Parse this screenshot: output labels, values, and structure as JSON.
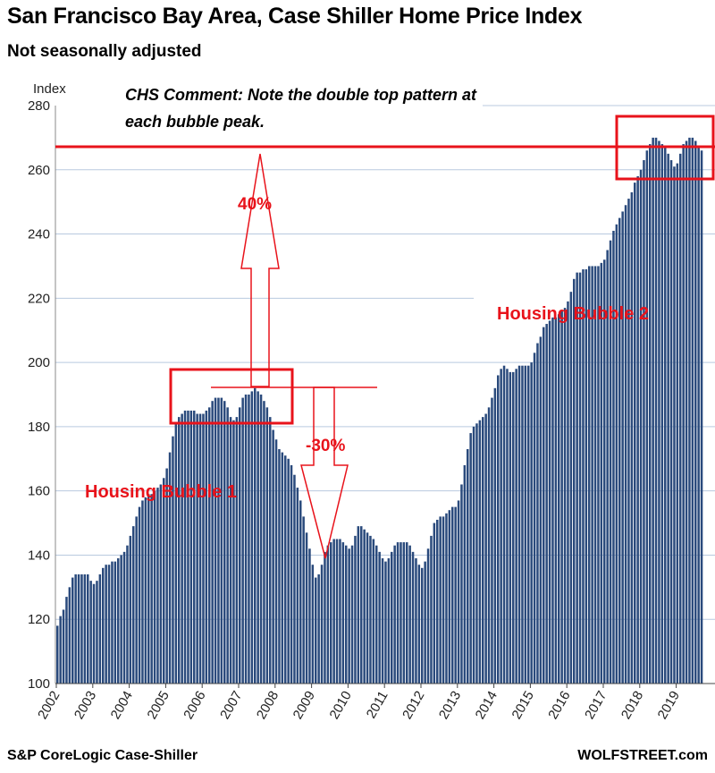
{
  "header": {
    "title": "San Francisco Bay Area, Case Shiller Home Price Index",
    "subtitle": "Not seasonally adjusted"
  },
  "footer": {
    "source": "S&P CoreLogic Case-Shiller",
    "brand": "WOLFSTREET.com"
  },
  "colors": {
    "bar": "#2a4a7c",
    "annotation": "#e8131b",
    "grid": "#b9c9df"
  },
  "annotations": {
    "comment_line1": "CHS Comment: Note the double top pattern at",
    "comment_line2": "each bubble peak.",
    "pct_up": "40%",
    "pct_down": "-30%",
    "bubble1": "Housing Bubble 1",
    "bubble2": "Housing Bubble 2"
  },
  "chart_data": {
    "type": "bar",
    "title": "San Francisco Bay Area, Case Shiller Home Price Index",
    "subtitle": "Not seasonally adjusted",
    "ylabel": "Index",
    "ylim": [
      100,
      280
    ],
    "yticks": [
      100,
      120,
      140,
      160,
      180,
      200,
      220,
      240,
      260,
      280
    ],
    "xticks": [
      "2002",
      "2003",
      "2004",
      "2005",
      "2006",
      "2007",
      "2008",
      "2009",
      "2010",
      "2011",
      "2012",
      "2013",
      "2014",
      "2015",
      "2016",
      "2017",
      "2018",
      "2019"
    ],
    "grid": "horizontal",
    "frequency": "monthly, Jan 2002 - Sep 2019",
    "values": [
      118,
      121,
      123,
      127,
      130,
      133,
      134,
      134,
      134,
      134,
      134,
      132,
      131,
      132,
      134,
      136,
      137,
      137,
      138,
      138,
      139,
      140,
      141,
      143,
      146,
      149,
      152,
      155,
      157,
      158,
      159,
      159,
      160,
      161,
      162,
      164,
      167,
      172,
      177,
      181,
      183,
      184,
      185,
      185,
      185,
      185,
      184,
      184,
      184,
      185,
      186,
      188,
      189,
      189,
      189,
      188,
      186,
      183,
      182,
      183,
      186,
      189,
      190,
      190,
      191,
      192,
      191,
      190,
      188,
      186,
      183,
      179,
      176,
      173,
      172,
      171,
      170,
      168,
      165,
      161,
      157,
      152,
      147,
      142,
      137,
      133,
      134,
      137,
      141,
      143,
      144,
      145,
      145,
      145,
      144,
      143,
      142,
      143,
      146,
      149,
      149,
      148,
      147,
      146,
      145,
      143,
      141,
      139,
      138,
      139,
      141,
      143,
      144,
      144,
      144,
      144,
      143,
      141,
      139,
      137,
      136,
      138,
      142,
      146,
      150,
      151,
      152,
      152,
      153,
      154,
      155,
      155,
      157,
      162,
      168,
      173,
      178,
      180,
      181,
      182,
      183,
      184,
      186,
      189,
      192,
      196,
      198,
      199,
      198,
      197,
      197,
      198,
      199,
      199,
      199,
      199,
      200,
      203,
      206,
      208,
      211,
      212,
      213,
      214,
      214,
      215,
      216,
      217,
      219,
      222,
      226,
      228,
      228,
      229,
      229,
      230,
      230,
      230,
      230,
      231,
      232,
      235,
      238,
      241,
      243,
      245,
      247,
      249,
      251,
      253,
      256,
      258,
      260,
      263,
      266,
      268,
      270,
      270,
      269,
      268,
      267,
      265,
      263,
      261,
      262,
      265,
      268,
      269,
      270,
      270,
      269,
      267,
      266
    ]
  }
}
